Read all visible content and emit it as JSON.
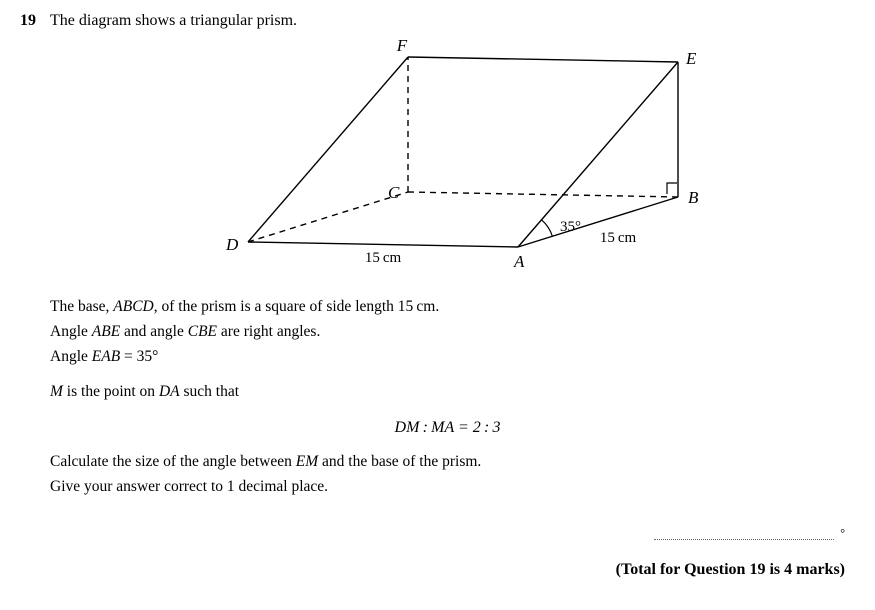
{
  "question": {
    "number": "19",
    "intro": "The diagram shows a triangular prism.",
    "body1_pre": "The base, ",
    "body1_abcd": "ABCD",
    "body1_post": ", of the prism is a square of side length 15 cm.",
    "body2_pre": "Angle ",
    "body2_abe": "ABE",
    "body2_mid": " and angle ",
    "body2_cbe": "CBE",
    "body2_post": " are right angles.",
    "body3_pre": "Angle ",
    "body3_eab": "EAB",
    "body3_post": " = 35°",
    "body4_pre_m": "M",
    "body4_mid": " is the point on ",
    "body4_da": "DA",
    "body4_post": " such that",
    "ratio": "DM : MA = 2 : 3",
    "body5_pre": "Calculate the size of the angle between ",
    "body5_em": "EM",
    "body5_post": " and the base of the prism.",
    "body6": "Give your answer correct to 1 decimal place.",
    "marks": "(Total for Question 19 is 4 marks)",
    "answer_unit": "°"
  },
  "diagram": {
    "labels": {
      "A": "A",
      "B": "B",
      "C": "C",
      "D": "D",
      "E": "E",
      "F": "F"
    },
    "angle_label": "35°",
    "side_ab": "15 cm",
    "side_da": "15 cm",
    "stroke": "#000000",
    "stroke_width": 1.4,
    "dash": "6,5",
    "font_size_label": 17,
    "font_size_dim": 15,
    "font_style_label": "italic"
  }
}
